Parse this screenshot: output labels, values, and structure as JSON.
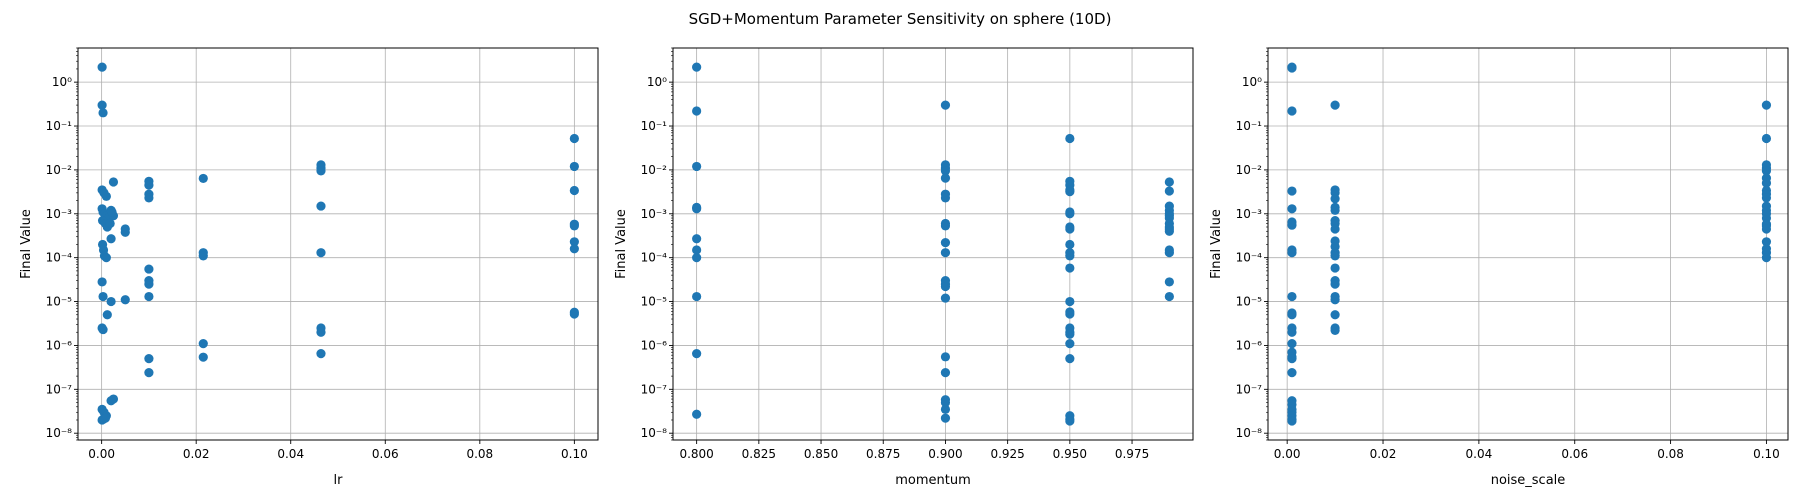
{
  "figure": {
    "title": "SGD+Momentum Parameter Sensitivity on sphere (10D)"
  },
  "chart_data": [
    {
      "type": "scatter",
      "xlabel": "lr",
      "ylabel": "Final Value",
      "xscale": "linear",
      "yscale": "log",
      "xlim": [
        -0.005,
        0.105
      ],
      "ylim": [
        7e-09,
        6
      ],
      "xticks": [
        0.0,
        0.02,
        0.04,
        0.06,
        0.08,
        0.1
      ],
      "xtick_labels": [
        "0.00",
        "0.02",
        "0.04",
        "0.06",
        "0.08",
        "0.10"
      ],
      "yticks": [
        1e-08,
        1e-07,
        1e-06,
        1e-05,
        0.0001,
        0.001,
        0.01,
        0.1,
        1
      ],
      "ytick_labels": [
        "10⁻⁸",
        "10⁻⁷",
        "10⁻⁶",
        "10⁻⁵",
        "10⁻⁴",
        "10⁻³",
        "10⁻²",
        "10⁻¹",
        "10⁰"
      ],
      "grid": true,
      "color": "#1f77b4",
      "points": [
        [
          0.0001,
          2.2
        ],
        [
          0.0001,
          0.3
        ],
        [
          0.0003,
          0.2
        ],
        [
          0.0001,
          0.0035
        ],
        [
          0.0005,
          0.003
        ],
        [
          0.001,
          0.0025
        ],
        [
          0.0001,
          0.0013
        ],
        [
          0.0003,
          0.0011
        ],
        [
          0.0006,
          0.001
        ],
        [
          0.001,
          0.0009
        ],
        [
          0.0015,
          0.0008
        ],
        [
          0.002,
          0.0012
        ],
        [
          0.0025,
          0.0009
        ],
        [
          0.0002,
          0.0007
        ],
        [
          0.0008,
          0.0006
        ],
        [
          0.0012,
          0.0005
        ],
        [
          0.0018,
          0.0006
        ],
        [
          0.0022,
          0.0011
        ],
        [
          0.0025,
          0.0053
        ],
        [
          0.002,
          0.00027
        ],
        [
          0.0002,
          0.0002
        ],
        [
          0.0004,
          0.00015
        ],
        [
          0.0006,
          0.00011
        ],
        [
          0.001,
          0.0001
        ],
        [
          0.0001,
          2.8e-05
        ],
        [
          0.0003,
          1.3e-05
        ],
        [
          0.0012,
          5e-06
        ],
        [
          0.002,
          1e-05
        ],
        [
          0.0001,
          2.5e-06
        ],
        [
          0.0003,
          2.3e-06
        ],
        [
          0.0001,
          3.5e-08
        ],
        [
          0.0005,
          3e-08
        ],
        [
          0.001,
          2.5e-08
        ],
        [
          0.0001,
          2e-08
        ],
        [
          0.0004,
          2.1e-08
        ],
        [
          0.0008,
          2.2e-08
        ],
        [
          0.002,
          5.5e-08
        ],
        [
          0.0025,
          6e-08
        ],
        [
          0.005,
          0.00045
        ],
        [
          0.005,
          0.00038
        ],
        [
          0.005,
          1.1e-05
        ],
        [
          0.01,
          0.0055
        ],
        [
          0.01,
          0.0045
        ],
        [
          0.01,
          0.0028
        ],
        [
          0.01,
          0.0023
        ],
        [
          0.01,
          5.5e-05
        ],
        [
          0.01,
          3e-05
        ],
        [
          0.01,
          2.5e-05
        ],
        [
          0.01,
          1.3e-05
        ],
        [
          0.01,
          5e-07
        ],
        [
          0.01,
          2.4e-07
        ],
        [
          0.0215,
          0.0064
        ],
        [
          0.0215,
          0.00013
        ],
        [
          0.0215,
          0.00011
        ],
        [
          0.0215,
          1.1e-06
        ],
        [
          0.0215,
          5.4e-07
        ],
        [
          0.0464,
          0.013
        ],
        [
          0.0464,
          0.011
        ],
        [
          0.0464,
          0.0095
        ],
        [
          0.0464,
          0.0015
        ],
        [
          0.0464,
          0.00013
        ],
        [
          0.0464,
          2.5e-06
        ],
        [
          0.0464,
          2e-06
        ],
        [
          0.0464,
          6.5e-07
        ],
        [
          0.1,
          0.052
        ],
        [
          0.1,
          0.012
        ],
        [
          0.1,
          0.0034
        ],
        [
          0.1,
          0.00058
        ],
        [
          0.1,
          0.00053
        ],
        [
          0.1,
          0.00023
        ],
        [
          0.1,
          0.00016
        ],
        [
          0.1,
          5.7e-06
        ],
        [
          0.1,
          5.2e-06
        ]
      ]
    },
    {
      "type": "scatter",
      "xlabel": "momentum",
      "ylabel": "Final Value",
      "xscale": "linear",
      "yscale": "log",
      "xlim": [
        0.7905,
        0.9995
      ],
      "ylim": [
        7e-09,
        6
      ],
      "xticks": [
        0.8,
        0.825,
        0.85,
        0.875,
        0.9,
        0.925,
        0.95,
        0.975
      ],
      "xtick_labels": [
        "0.800",
        "0.825",
        "0.850",
        "0.875",
        "0.900",
        "0.925",
        "0.950",
        "0.975"
      ],
      "yticks": [
        1e-08,
        1e-07,
        1e-06,
        1e-05,
        0.0001,
        0.001,
        0.01,
        0.1,
        1
      ],
      "ytick_labels": [
        "10⁻⁸",
        "10⁻⁷",
        "10⁻⁶",
        "10⁻⁵",
        "10⁻⁴",
        "10⁻³",
        "10⁻²",
        "10⁻¹",
        "10⁰"
      ],
      "grid": true,
      "color": "#1f77b4",
      "points": [
        [
          0.8,
          2.2
        ],
        [
          0.8,
          0.22
        ],
        [
          0.8,
          0.012
        ],
        [
          0.8,
          0.0014
        ],
        [
          0.8,
          0.0013
        ],
        [
          0.8,
          0.00027
        ],
        [
          0.8,
          0.00015
        ],
        [
          0.8,
          0.0001
        ],
        [
          0.8,
          1.3e-05
        ],
        [
          0.8,
          6.5e-07
        ],
        [
          0.8,
          2.7e-08
        ],
        [
          0.9,
          0.3
        ],
        [
          0.9,
          0.013
        ],
        [
          0.9,
          0.011
        ],
        [
          0.9,
          0.0095
        ],
        [
          0.9,
          0.0065
        ],
        [
          0.9,
          0.0028
        ],
        [
          0.9,
          0.0023
        ],
        [
          0.9,
          0.0006
        ],
        [
          0.9,
          0.00053
        ],
        [
          0.9,
          0.00022
        ],
        [
          0.9,
          0.00013
        ],
        [
          0.9,
          3e-05
        ],
        [
          0.9,
          2.5e-05
        ],
        [
          0.9,
          2.2e-05
        ],
        [
          0.9,
          1.2e-05
        ],
        [
          0.9,
          5.5e-07
        ],
        [
          0.9,
          2.4e-07
        ],
        [
          0.9,
          5.8e-08
        ],
        [
          0.9,
          5e-08
        ],
        [
          0.9,
          3.5e-08
        ],
        [
          0.9,
          2.2e-08
        ],
        [
          0.95,
          0.052
        ],
        [
          0.95,
          0.0055
        ],
        [
          0.95,
          0.0045
        ],
        [
          0.95,
          0.0035
        ],
        [
          0.95,
          0.0032
        ],
        [
          0.95,
          0.0011
        ],
        [
          0.95,
          0.001
        ],
        [
          0.95,
          0.0005
        ],
        [
          0.95,
          0.00045
        ],
        [
          0.95,
          0.0002
        ],
        [
          0.95,
          0.00013
        ],
        [
          0.95,
          0.00011
        ],
        [
          0.95,
          5.8e-05
        ],
        [
          0.95,
          1e-05
        ],
        [
          0.95,
          5.8e-06
        ],
        [
          0.95,
          5.2e-06
        ],
        [
          0.95,
          2.5e-06
        ],
        [
          0.95,
          2e-06
        ],
        [
          0.95,
          1.8e-06
        ],
        [
          0.95,
          1.1e-06
        ],
        [
          0.95,
          5e-07
        ],
        [
          0.95,
          2.5e-08
        ],
        [
          0.95,
          2.1e-08
        ],
        [
          0.95,
          1.9e-08
        ],
        [
          0.99,
          0.0053
        ],
        [
          0.99,
          0.0033
        ],
        [
          0.99,
          0.0015
        ],
        [
          0.99,
          0.0012
        ],
        [
          0.99,
          0.001
        ],
        [
          0.99,
          0.0009
        ],
        [
          0.99,
          0.0008
        ],
        [
          0.99,
          0.0006
        ],
        [
          0.99,
          0.0005
        ],
        [
          0.99,
          0.00045
        ],
        [
          0.99,
          0.0004
        ],
        [
          0.99,
          0.00015
        ],
        [
          0.99,
          0.00013
        ],
        [
          0.99,
          2.8e-05
        ],
        [
          0.99,
          1.3e-05
        ]
      ]
    },
    {
      "type": "scatter",
      "xlabel": "noise_scale",
      "ylabel": "Final Value",
      "xscale": "linear",
      "yscale": "log",
      "xlim": [
        -0.004,
        0.1045
      ],
      "ylim": [
        7e-09,
        6
      ],
      "xticks": [
        0.0,
        0.02,
        0.04,
        0.06,
        0.08,
        0.1
      ],
      "xtick_labels": [
        "0.00",
        "0.02",
        "0.04",
        "0.06",
        "0.08",
        "0.10"
      ],
      "yticks": [
        1e-08,
        1e-07,
        1e-06,
        1e-05,
        0.0001,
        0.001,
        0.01,
        0.1,
        1
      ],
      "ytick_labels": [
        "10⁻⁸",
        "10⁻⁷",
        "10⁻⁶",
        "10⁻⁵",
        "10⁻⁴",
        "10⁻³",
        "10⁻²",
        "10⁻¹",
        "10⁰"
      ],
      "grid": true,
      "color": "#1f77b4",
      "points": [
        [
          0.001,
          2.2
        ],
        [
          0.001,
          2.1
        ],
        [
          0.001,
          0.22
        ],
        [
          0.001,
          0.0033
        ],
        [
          0.001,
          0.0013
        ],
        [
          0.001,
          0.00065
        ],
        [
          0.001,
          0.00055
        ],
        [
          0.001,
          0.00015
        ],
        [
          0.001,
          0.00013
        ],
        [
          0.001,
          1.3e-05
        ],
        [
          0.001,
          5.5e-06
        ],
        [
          0.001,
          5e-06
        ],
        [
          0.001,
          2.5e-06
        ],
        [
          0.001,
          2e-06
        ],
        [
          0.001,
          1.1e-06
        ],
        [
          0.001,
          7e-07
        ],
        [
          0.001,
          5.5e-07
        ],
        [
          0.001,
          5e-07
        ],
        [
          0.001,
          2.4e-07
        ],
        [
          0.001,
          5.5e-08
        ],
        [
          0.001,
          4.5e-08
        ],
        [
          0.001,
          3.5e-08
        ],
        [
          0.001,
          3e-08
        ],
        [
          0.001,
          2.5e-08
        ],
        [
          0.001,
          2.1e-08
        ],
        [
          0.001,
          1.9e-08
        ],
        [
          0.01,
          0.3
        ],
        [
          0.01,
          0.0035
        ],
        [
          0.01,
          0.003
        ],
        [
          0.01,
          0.0022
        ],
        [
          0.01,
          0.0014
        ],
        [
          0.01,
          0.0012
        ],
        [
          0.01,
          0.0007
        ],
        [
          0.01,
          0.0006
        ],
        [
          0.01,
          0.00045
        ],
        [
          0.01,
          0.00024
        ],
        [
          0.01,
          0.00018
        ],
        [
          0.01,
          0.00013
        ],
        [
          0.01,
          0.00011
        ],
        [
          0.01,
          5.8e-05
        ],
        [
          0.01,
          3e-05
        ],
        [
          0.01,
          2.5e-05
        ],
        [
          0.01,
          1.3e-05
        ],
        [
          0.01,
          1.1e-05
        ],
        [
          0.01,
          5e-06
        ],
        [
          0.01,
          2.5e-06
        ],
        [
          0.01,
          2.2e-06
        ],
        [
          0.1,
          0.3
        ],
        [
          0.1,
          0.052
        ],
        [
          0.1,
          0.013
        ],
        [
          0.1,
          0.011
        ],
        [
          0.1,
          0.0095
        ],
        [
          0.1,
          0.0065
        ],
        [
          0.1,
          0.005
        ],
        [
          0.1,
          0.0034
        ],
        [
          0.1,
          0.0028
        ],
        [
          0.1,
          0.0023
        ],
        [
          0.1,
          0.0015
        ],
        [
          0.1,
          0.0012
        ],
        [
          0.1,
          0.001
        ],
        [
          0.1,
          0.0008
        ],
        [
          0.1,
          0.00058
        ],
        [
          0.1,
          0.00053
        ],
        [
          0.1,
          0.00045
        ],
        [
          0.1,
          0.00023
        ],
        [
          0.1,
          0.00016
        ],
        [
          0.1,
          0.00013
        ],
        [
          0.1,
          0.0001
        ]
      ]
    }
  ]
}
